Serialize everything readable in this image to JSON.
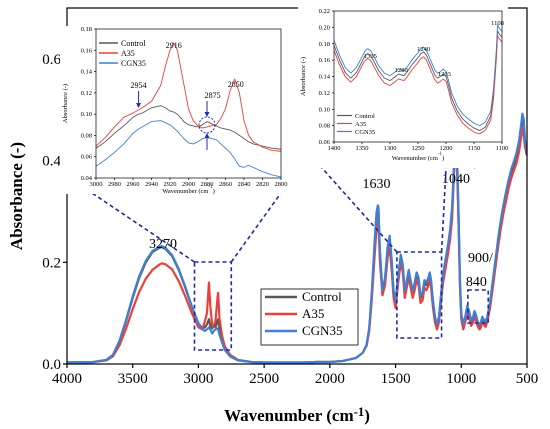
{
  "chart_data": [
    {
      "type": "line",
      "xlabel": "Wavenumber (cm",
      "xlabel_sup": "-1",
      "xlabel_end": ")",
      "ylabel": "Absorbance (-)",
      "xlim": [
        4000,
        500
      ],
      "ylim": [
        0,
        0.7
      ],
      "xticks": [
        "4000",
        "3500",
        "3000",
        "2500",
        "2000",
        "1500",
        "1000",
        "500"
      ],
      "yticks": [
        "0.0",
        "0.2",
        "0.4",
        "0.6"
      ],
      "legend_position": "bottom-center",
      "x": [
        4000,
        3800,
        3700,
        3650,
        3600,
        3550,
        3500,
        3450,
        3400,
        3350,
        3300,
        3280,
        3250,
        3200,
        3150,
        3100,
        3050,
        3000,
        2970,
        2950,
        2935,
        2920,
        2910,
        2895,
        2880,
        2870,
        2855,
        2850,
        2840,
        2820,
        2800,
        2760,
        2700,
        2600,
        2500,
        2400,
        2300,
        2200,
        2100,
        2000,
        1900,
        1800,
        1750,
        1720,
        1700,
        1680,
        1660,
        1645,
        1635,
        1630,
        1620,
        1600,
        1580,
        1560,
        1545,
        1530,
        1515,
        1500,
        1480,
        1460,
        1445,
        1430,
        1415,
        1400,
        1385,
        1370,
        1355,
        1340,
        1325,
        1310,
        1295,
        1280,
        1265,
        1250,
        1240,
        1230,
        1215,
        1200,
        1185,
        1170,
        1155,
        1140,
        1120,
        1100,
        1085,
        1070,
        1060,
        1050,
        1040,
        1030,
        1020,
        1010,
        1000,
        985,
        970,
        955,
        940,
        925,
        910,
        900,
        890,
        880,
        870,
        860,
        850,
        840,
        830,
        815,
        800,
        780,
        760,
        740,
        720,
        700,
        680,
        660,
        640,
        620,
        600,
        580,
        560,
        545,
        535,
        525,
        515,
        505,
        500
      ],
      "series": [
        {
          "name": "Control",
          "color": "#595959",
          "values": [
            0.003,
            0.004,
            0.008,
            0.018,
            0.045,
            0.085,
            0.13,
            0.17,
            0.2,
            0.22,
            0.228,
            0.23,
            0.226,
            0.212,
            0.185,
            0.15,
            0.112,
            0.08,
            0.07,
            0.072,
            0.078,
            0.088,
            0.075,
            0.07,
            0.078,
            0.072,
            0.085,
            0.088,
            0.07,
            0.05,
            0.033,
            0.018,
            0.008,
            0.004,
            0.003,
            0.003,
            0.003,
            0.003,
            0.004,
            0.004,
            0.006,
            0.012,
            0.022,
            0.038,
            0.07,
            0.14,
            0.23,
            0.29,
            0.305,
            0.3,
            0.22,
            0.14,
            0.165,
            0.225,
            0.245,
            0.2,
            0.14,
            0.12,
            0.17,
            0.21,
            0.19,
            0.14,
            0.16,
            0.18,
            0.16,
            0.14,
            0.155,
            0.175,
            0.165,
            0.13,
            0.135,
            0.16,
            0.155,
            0.165,
            0.175,
            0.16,
            0.12,
            0.09,
            0.075,
            0.09,
            0.13,
            0.17,
            0.2,
            0.23,
            0.26,
            0.3,
            0.36,
            0.42,
            0.435,
            0.38,
            0.28,
            0.16,
            0.095,
            0.075,
            0.09,
            0.11,
            0.1,
            0.082,
            0.09,
            0.1,
            0.095,
            0.085,
            0.078,
            0.075,
            0.08,
            0.09,
            0.085,
            0.08,
            0.092,
            0.12,
            0.16,
            0.2,
            0.24,
            0.275,
            0.305,
            0.33,
            0.355,
            0.375,
            0.39,
            0.405,
            0.43,
            0.46,
            0.48,
            0.47,
            0.43,
            0.415,
            0.41
          ]
        },
        {
          "name": "A35",
          "color": "#e8403c",
          "values": [
            0.003,
            0.004,
            0.007,
            0.015,
            0.037,
            0.07,
            0.108,
            0.142,
            0.168,
            0.185,
            0.195,
            0.198,
            0.196,
            0.186,
            0.163,
            0.133,
            0.1,
            0.072,
            0.068,
            0.085,
            0.1,
            0.16,
            0.115,
            0.075,
            0.078,
            0.085,
            0.13,
            0.14,
            0.09,
            0.055,
            0.035,
            0.018,
            0.008,
            0.004,
            0.003,
            0.003,
            0.003,
            0.003,
            0.004,
            0.004,
            0.006,
            0.012,
            0.022,
            0.036,
            0.066,
            0.13,
            0.21,
            0.265,
            0.28,
            0.275,
            0.205,
            0.135,
            0.155,
            0.21,
            0.23,
            0.185,
            0.13,
            0.11,
            0.16,
            0.2,
            0.18,
            0.13,
            0.15,
            0.17,
            0.15,
            0.13,
            0.145,
            0.165,
            0.155,
            0.12,
            0.125,
            0.15,
            0.145,
            0.155,
            0.165,
            0.15,
            0.11,
            0.082,
            0.068,
            0.082,
            0.12,
            0.158,
            0.188,
            0.218,
            0.245,
            0.285,
            0.345,
            0.405,
            0.42,
            0.365,
            0.265,
            0.15,
            0.088,
            0.068,
            0.082,
            0.1,
            0.092,
            0.075,
            0.082,
            0.092,
            0.087,
            0.078,
            0.071,
            0.068,
            0.073,
            0.082,
            0.078,
            0.073,
            0.085,
            0.112,
            0.15,
            0.19,
            0.23,
            0.265,
            0.295,
            0.32,
            0.345,
            0.365,
            0.38,
            0.395,
            0.418,
            0.445,
            0.462,
            0.452,
            0.425,
            0.42,
            0.415
          ]
        },
        {
          "name": "CGN35",
          "color": "#3f7fd4",
          "values": [
            0.003,
            0.004,
            0.008,
            0.018,
            0.046,
            0.087,
            0.133,
            0.173,
            0.203,
            0.222,
            0.23,
            0.232,
            0.228,
            0.214,
            0.187,
            0.152,
            0.113,
            0.08,
            0.068,
            0.065,
            0.068,
            0.072,
            0.068,
            0.06,
            0.066,
            0.068,
            0.07,
            0.068,
            0.058,
            0.042,
            0.028,
            0.015,
            0.007,
            0.004,
            0.003,
            0.003,
            0.003,
            0.003,
            0.004,
            0.004,
            0.006,
            0.012,
            0.022,
            0.038,
            0.072,
            0.145,
            0.238,
            0.298,
            0.312,
            0.308,
            0.228,
            0.145,
            0.17,
            0.232,
            0.252,
            0.206,
            0.145,
            0.124,
            0.175,
            0.215,
            0.195,
            0.144,
            0.164,
            0.185,
            0.164,
            0.144,
            0.16,
            0.18,
            0.17,
            0.134,
            0.14,
            0.165,
            0.16,
            0.17,
            0.18,
            0.165,
            0.124,
            0.093,
            0.078,
            0.093,
            0.134,
            0.175,
            0.205,
            0.236,
            0.265,
            0.308,
            0.368,
            0.43,
            0.445,
            0.39,
            0.288,
            0.165,
            0.098,
            0.078,
            0.093,
            0.114,
            0.104,
            0.085,
            0.093,
            0.104,
            0.098,
            0.088,
            0.08,
            0.078,
            0.083,
            0.093,
            0.088,
            0.083,
            0.095,
            0.124,
            0.165,
            0.205,
            0.246,
            0.282,
            0.312,
            0.338,
            0.362,
            0.383,
            0.398,
            0.415,
            0.44,
            0.47,
            0.492,
            0.482,
            0.44,
            0.425,
            0.418
          ]
        }
      ],
      "annotations": [
        {
          "text": "3270",
          "x": 3270
        },
        {
          "text": "1630",
          "x": 1630
        },
        {
          "text": "1040",
          "x": 1040
        },
        {
          "text": "900/",
          "x": 900
        },
        {
          "text": "840",
          "x": 840
        }
      ]
    },
    {
      "type": "line",
      "xlabel": "Wavenumber (cm",
      "xlabel_sup": "-1",
      "xlabel_end": ")",
      "ylabel": "Absorbance (-)",
      "xlim": [
        3000,
        2800
      ],
      "ylim": [
        0.04,
        0.18
      ],
      "xticks": [
        "3000",
        "2980",
        "2960",
        "2940",
        "2920",
        "2900",
        "2880",
        "2860",
        "2840",
        "2820",
        "2800"
      ],
      "yticks": [
        "0.04",
        "0.06",
        "0.08",
        "0.10",
        "0.12",
        "0.14",
        "0.16",
        "0.18"
      ],
      "legend_position": "top-left",
      "x": [
        3000,
        2990,
        2980,
        2970,
        2960,
        2954,
        2950,
        2940,
        2930,
        2925,
        2920,
        2916,
        2912,
        2905,
        2900,
        2895,
        2890,
        2885,
        2880,
        2875,
        2870,
        2865,
        2860,
        2855,
        2850,
        2845,
        2840,
        2835,
        2830,
        2820,
        2810,
        2800
      ],
      "series": [
        {
          "name": "Control",
          "color": "#595959",
          "values": [
            0.068,
            0.074,
            0.082,
            0.089,
            0.097,
            0.1,
            0.101,
            0.106,
            0.108,
            0.106,
            0.103,
            0.102,
            0.1,
            0.093,
            0.09,
            0.089,
            0.088,
            0.09,
            0.093,
            0.091,
            0.089,
            0.087,
            0.086,
            0.085,
            0.083,
            0.08,
            0.077,
            0.074,
            0.072,
            0.07,
            0.068,
            0.067
          ]
        },
        {
          "name": "A35",
          "color": "#e8403c",
          "values": [
            0.07,
            0.078,
            0.088,
            0.097,
            0.101,
            0.104,
            0.106,
            0.112,
            0.127,
            0.145,
            0.16,
            0.167,
            0.16,
            0.128,
            0.105,
            0.094,
            0.089,
            0.087,
            0.088,
            0.089,
            0.09,
            0.096,
            0.105,
            0.122,
            0.133,
            0.12,
            0.094,
            0.08,
            0.074,
            0.069,
            0.066,
            0.065
          ]
        },
        {
          "name": "CGN35",
          "color": "#3f7fd4",
          "values": [
            0.051,
            0.057,
            0.064,
            0.072,
            0.082,
            0.086,
            0.088,
            0.093,
            0.094,
            0.092,
            0.09,
            0.087,
            0.084,
            0.077,
            0.073,
            0.072,
            0.074,
            0.077,
            0.078,
            0.077,
            0.076,
            0.072,
            0.068,
            0.064,
            0.058,
            0.051,
            0.05,
            0.052,
            0.05,
            0.046,
            0.043,
            0.041
          ]
        }
      ],
      "annotations": [
        {
          "text": "2954",
          "x": 2954
        },
        {
          "text": "2916",
          "x": 2916
        },
        {
          "text": "2875",
          "x": 2875
        },
        {
          "text": "2850",
          "x": 2850
        }
      ]
    },
    {
      "type": "line",
      "xlabel": "Wavenumber (cm",
      "xlabel_sup": "-1",
      "xlabel_end": ")",
      "ylabel": "Absorbance (-)",
      "xlim": [
        1400,
        1100
      ],
      "ylim": [
        0.06,
        0.22
      ],
      "xticks": [
        "1400",
        "1350",
        "1300",
        "1250",
        "1200",
        "1150",
        "1100"
      ],
      "yticks": [
        "0.06",
        "0.08",
        "0.10",
        "0.12",
        "0.14",
        "0.16",
        "0.18",
        "0.20",
        "0.22"
      ],
      "legend_position": "bottom-left",
      "x": [
        1400,
        1390,
        1380,
        1370,
        1360,
        1350,
        1345,
        1340,
        1335,
        1330,
        1320,
        1310,
        1300,
        1290,
        1285,
        1280,
        1275,
        1270,
        1260,
        1250,
        1245,
        1240,
        1235,
        1230,
        1220,
        1215,
        1210,
        1205,
        1200,
        1195,
        1190,
        1180,
        1170,
        1160,
        1150,
        1140,
        1130,
        1120,
        1115,
        1110,
        1108,
        1105,
        1100
      ],
      "series": [
        {
          "name": "Control",
          "color": "#595959",
          "values": [
            0.178,
            0.16,
            0.145,
            0.138,
            0.145,
            0.158,
            0.165,
            0.168,
            0.166,
            0.16,
            0.147,
            0.138,
            0.135,
            0.14,
            0.143,
            0.142,
            0.141,
            0.145,
            0.155,
            0.163,
            0.168,
            0.17,
            0.166,
            0.158,
            0.142,
            0.138,
            0.14,
            0.143,
            0.14,
            0.128,
            0.114,
            0.098,
            0.088,
            0.082,
            0.077,
            0.074,
            0.078,
            0.092,
            0.12,
            0.168,
            0.196,
            0.192,
            0.188
          ]
        },
        {
          "name": "A35",
          "color": "#e8403c",
          "values": [
            0.172,
            0.154,
            0.14,
            0.133,
            0.14,
            0.153,
            0.159,
            0.162,
            0.16,
            0.154,
            0.141,
            0.132,
            0.129,
            0.134,
            0.137,
            0.136,
            0.135,
            0.139,
            0.149,
            0.157,
            0.162,
            0.164,
            0.16,
            0.152,
            0.136,
            0.132,
            0.134,
            0.137,
            0.134,
            0.122,
            0.108,
            0.093,
            0.083,
            0.077,
            0.072,
            0.07,
            0.074,
            0.087,
            0.114,
            0.162,
            0.19,
            0.186,
            0.182
          ]
        },
        {
          "name": "CGN35",
          "color": "#3f7fd4",
          "values": [
            0.184,
            0.166,
            0.151,
            0.144,
            0.151,
            0.164,
            0.171,
            0.174,
            0.172,
            0.166,
            0.153,
            0.144,
            0.141,
            0.146,
            0.149,
            0.148,
            0.147,
            0.151,
            0.161,
            0.169,
            0.174,
            0.176,
            0.172,
            0.164,
            0.148,
            0.144,
            0.146,
            0.149,
            0.146,
            0.134,
            0.12,
            0.104,
            0.094,
            0.088,
            0.083,
            0.08,
            0.084,
            0.098,
            0.126,
            0.174,
            0.203,
            0.199,
            0.195
          ]
        }
      ],
      "annotations": [
        {
          "text": "1335",
          "x": 1335
        },
        {
          "text": "1280",
          "x": 1280
        },
        {
          "text": "1240",
          "x": 1240
        },
        {
          "text": "1203",
          "x": 1203
        },
        {
          "text": "1108",
          "x": 1108
        }
      ]
    }
  ]
}
